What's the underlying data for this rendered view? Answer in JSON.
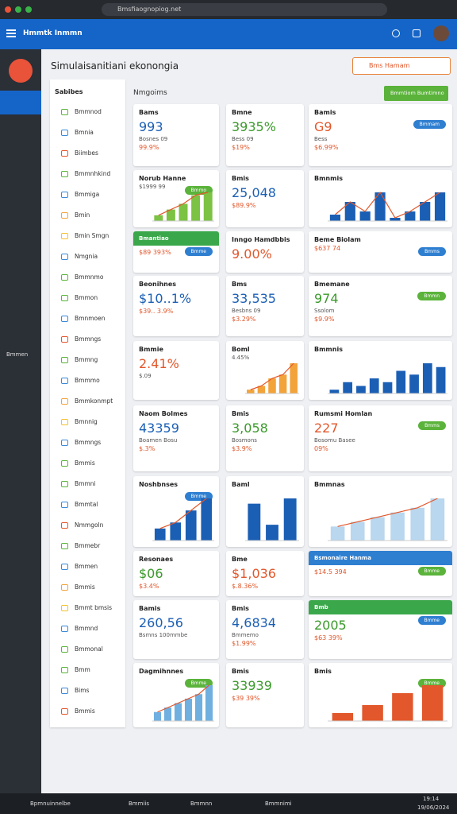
{
  "browser": {
    "address": "Bmsfiaognopiog.net"
  },
  "header": {
    "title": "Hmmtk Inmmn"
  },
  "page": {
    "title": "Simulaisanitiani ekonongia",
    "search": "Bms Hamam",
    "section": "Nmgoims",
    "action": "Bmmtiom Bumtimno"
  },
  "rail": {
    "label": "Bmmen"
  },
  "sidebar": {
    "title": "Sabibes",
    "items": [
      "Bmmnod",
      "Bmnia",
      "Biimbes",
      "Bmmnhkind",
      "Bmmiga",
      "Bmin",
      "Bmin Smgn",
      "Nmgnia",
      "Bmmnmo",
      "Bmmon",
      "Bmnmoen",
      "Bmmngs",
      "Bmmng",
      "Bmmmo",
      "Bmmkonmpt",
      "Bmnnig",
      "Bmmngs",
      "Bmmis",
      "Bmmni",
      "Bmmtal",
      "Nmmgoln",
      "Bmmebr",
      "Bmmen",
      "Bmmis",
      "Bmmt bmsis",
      "Bmmnd",
      "Bmmonal",
      "Bmm",
      "Bims",
      "Bmmis"
    ]
  },
  "cards": [
    {
      "title": "Bams",
      "value": "993",
      "sub": "Bosnes 09",
      "delta": "99.9%"
    },
    {
      "title": "Bmne",
      "value": "3935%",
      "sub": "Bess 09",
      "delta": "$19%"
    },
    {
      "title": "Bamis",
      "button": "Bmmam",
      "value": "G9",
      "sub": "Bess",
      "delta": "$6.99%"
    },
    {
      "title": "Norub Hanne",
      "button": "Bmmo",
      "sub": "$1999 99",
      "chart": {
        "values": [
          2,
          4,
          6,
          9,
          10
        ],
        "color": "#7cc243",
        "line_color": "#e2572b"
      }
    },
    {
      "title": "Bmis",
      "value": "25,048",
      "delta": "$89.9%"
    },
    {
      "title": "Bmnmis",
      "chart": {
        "values": [
          2,
          6,
          3,
          9,
          1,
          3,
          6,
          9
        ],
        "color": "#1b5fb5",
        "line_color": "#e2572b"
      }
    },
    {
      "banner": "Bmantiao",
      "button": "Bmme",
      "delta": "$89 393%"
    },
    {
      "title": "Inngo Hamdbbis",
      "value": "9.00%"
    },
    {
      "title": "Beme Biolam",
      "button": "Bmms",
      "delta": "$637 74"
    },
    {
      "title": "Beonihnes",
      "value": "$10..1%",
      "delta": "$39.. 3.9%"
    },
    {
      "title": "Bms",
      "value": "33,535",
      "sub": "Besbns 09",
      "delta": "$3.29%"
    },
    {
      "title": "Bmemane",
      "button": "Bmmn",
      "value": "974",
      "sub": "Ssolom",
      "delta": "$9.9%"
    },
    {
      "title": "Bmmie",
      "value": "2.41%",
      "sub": "$.09"
    },
    {
      "title": "Boml",
      "sub": "4.45%",
      "chart": {
        "values": [
          1,
          2,
          4,
          5,
          8
        ],
        "color": "#f2a33a",
        "line_color": "#e2572b"
      }
    },
    {
      "title": "Bmmnis",
      "chart": {
        "values": [
          1,
          3,
          2,
          4,
          3,
          6,
          5,
          8,
          7
        ],
        "color": "#1b5fb5"
      }
    },
    {
      "title": "Naom Bolmes",
      "value": "43359",
      "sub": "Boamen Bosu",
      "delta": "$.3%"
    },
    {
      "title": "Bmis",
      "value": "3,058",
      "sub": "Bosmons",
      "delta": "$3.9%"
    },
    {
      "title": "Rumsmi Homlan",
      "button": "Bmms",
      "value": "227",
      "sub": "Bosomu Basee",
      "delta": "09%"
    },
    {
      "title": "Noshbnses",
      "button": "Bmme",
      "chart": {
        "values": [
          2,
          3,
          5,
          7
        ],
        "color": "#1b5fb5",
        "line_color": "#e2572b"
      }
    },
    {
      "title": "Baml",
      "chart": {
        "values": [
          7,
          3,
          8
        ],
        "color": "#1b5fb5"
      }
    },
    {
      "title": "Bmmnas",
      "chart": {
        "values": [
          3,
          4,
          5,
          6,
          7,
          9
        ],
        "color": "#b9d7ee",
        "line_color": "#e2572b"
      }
    },
    {
      "title": "Resonaes",
      "value": "$06",
      "delta": "$3.4%"
    },
    {
      "title": "Bme",
      "value": "$1,036",
      "delta": "$.8.36%"
    },
    {
      "banner": "Bsmonaire Hanma",
      "banner_color": "#2f7fd1",
      "button": "Bmme",
      "delta": "$14.5 394"
    },
    {
      "title": "Bamis",
      "value": "260,56",
      "sub": "Bsmns 100mmbe"
    },
    {
      "title": "Bmis",
      "value": "4,6834",
      "sub": "Bmmemo",
      "delta": "$1.99%"
    },
    {
      "banner": "Bmb",
      "button": "Bmme",
      "value": "2005",
      "delta": "$63 39%"
    },
    {
      "title": "Dagmihnnes",
      "button": "Bmme",
      "chart": {
        "values": [
          2,
          3,
          4,
          5,
          6,
          8
        ],
        "color": "#6fb0e0",
        "line_color": "#e2572b"
      }
    },
    {
      "title": "Bmis",
      "value": "33939",
      "delta": "$39 39%"
    },
    {
      "title": "Bmis",
      "button": "Bmme",
      "chart": {
        "values": [
          2,
          4,
          7,
          9
        ],
        "color": "#e2572b"
      }
    }
  ],
  "taskbar": {
    "search": "Bpmnuinnelbe",
    "apps": [
      "Bmmiis",
      "Bmmnn",
      "Bmmnimi"
    ],
    "time": "19:14",
    "date": "19/06/2024"
  }
}
